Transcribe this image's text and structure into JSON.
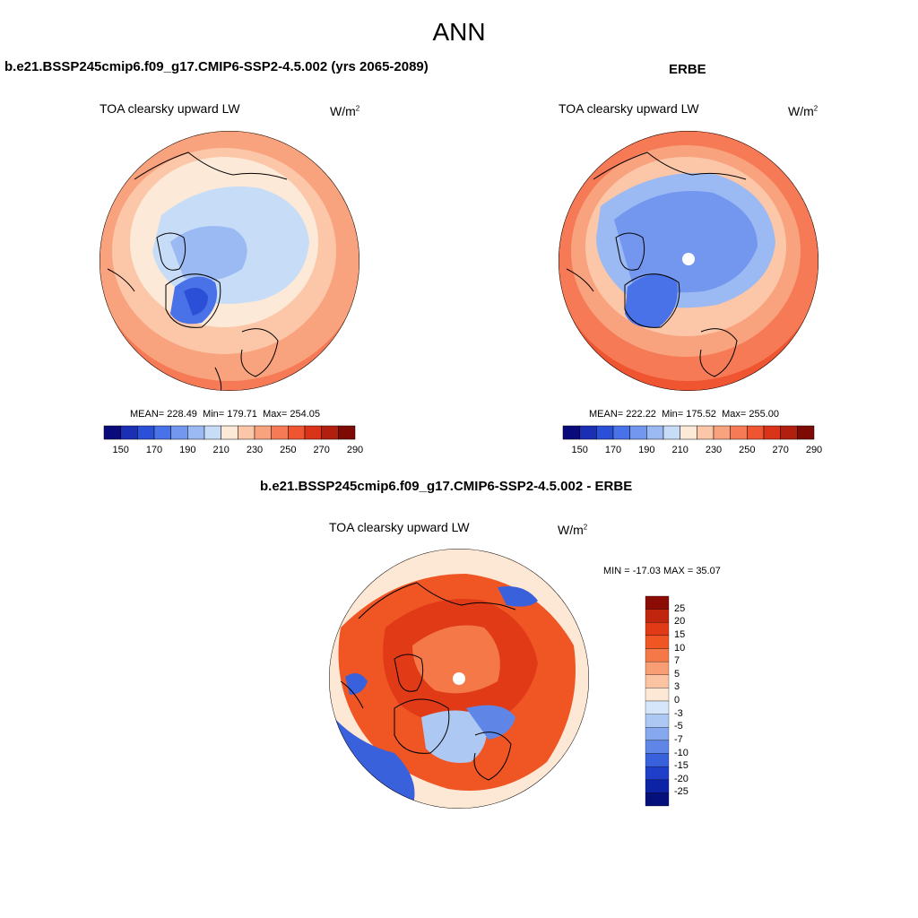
{
  "title": "ANN",
  "panels": [
    {
      "heading": "b.e21.BSSP245cmip6.f09_g17.CMIP6-SSP2-4.5.002 (yrs 2065-2089)",
      "variable": "TOA clearsky upward LW",
      "units_base": "W/m",
      "units_exp": "2",
      "mean": "228.49",
      "min": "179.71",
      "max": "254.05",
      "stats_mean_label": "MEAN=",
      "stats_min_label": "Min=",
      "stats_max_label": "Max="
    },
    {
      "heading": "ERBE",
      "variable": "TOA clearsky upward LW",
      "units_base": "W/m",
      "units_exp": "2",
      "mean": "222.22",
      "min": "175.52",
      "max": "255.00",
      "stats_mean_label": "MEAN=",
      "stats_min_label": "Min=",
      "stats_max_label": "Max="
    },
    {
      "heading": "b.e21.BSSP245cmip6.f09_g17.CMIP6-SSP2-4.5.002 - ERBE",
      "variable": "TOA clearsky upward LW",
      "units_base": "W/m",
      "units_exp": "2",
      "minmax": "MIN = -17.03 MAX =  35.07"
    }
  ],
  "colorbar_abs": {
    "tick_labels": [
      "150",
      "170",
      "190",
      "210",
      "230",
      "250",
      "270",
      "290"
    ],
    "colors": [
      "#0a0a7a",
      "#1a2fb4",
      "#2b4fd6",
      "#4a72e8",
      "#7397ee",
      "#9bb9f2",
      "#c7dcf7",
      "#fde9d7",
      "#fbc7a8",
      "#f9a27e",
      "#f57a55",
      "#ef5530",
      "#d9341a",
      "#b1200f",
      "#7d0a05"
    ]
  },
  "colorbar_diff": {
    "tick_labels": [
      "25",
      "20",
      "15",
      "10",
      "7",
      "5",
      "3",
      "0",
      "-3",
      "-5",
      "-7",
      "-10",
      "-15",
      "-20",
      "-25"
    ],
    "colors": [
      "#8a0c05",
      "#c0250d",
      "#e03a16",
      "#f05524",
      "#f57848",
      "#f89e74",
      "#fbc3a2",
      "#fde7d5",
      "#d6e6fa",
      "#aec8f4",
      "#86a8ee",
      "#5f86e6",
      "#3a61dc",
      "#1f3fc8",
      "#0d23a6",
      "#05107a"
    ]
  },
  "colors": {
    "orange_high": "#ef5530",
    "orange_mid": "#f9a27e",
    "peach": "#fde9d7",
    "pale_blue": "#c7dcf7",
    "mid_blue": "#7397ee",
    "deep_blue": "#4a72e8",
    "diff_red": "#e03a16"
  }
}
